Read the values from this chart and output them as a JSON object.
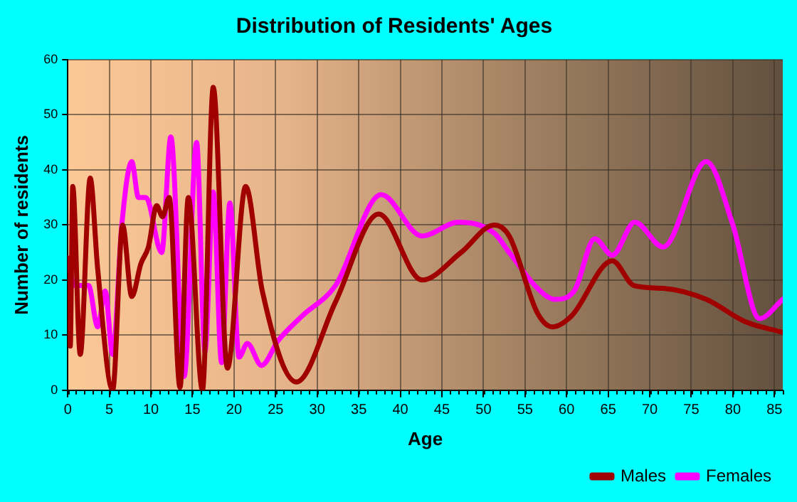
{
  "chart_data": {
    "type": "line",
    "title": "Distribution of Residents' Ages",
    "xlabel": "Age",
    "ylabel": "Number of residents",
    "xlim": [
      0,
      86
    ],
    "xticks": [
      0,
      5,
      10,
      15,
      20,
      25,
      30,
      35,
      40,
      45,
      50,
      55,
      60,
      65,
      70,
      75,
      80,
      85
    ],
    "ylim": [
      0,
      60
    ],
    "yticks": [
      0,
      10,
      20,
      30,
      40,
      50,
      60
    ],
    "grid": true,
    "legend": "bottom right",
    "marker": "none",
    "line_style": "solid",
    "series": [
      {
        "name": "Males",
        "color": "#a00000",
        "x": [
          0,
          0.3,
          0.6,
          1.5,
          2.7,
          3.6,
          5.4,
          6.6,
          7.7,
          8.8,
          9.7,
          10.7,
          11.4,
          12.2,
          13.5,
          14.5,
          16.2,
          17.5,
          19.2,
          21.4,
          23.4,
          27.5,
          32.2,
          37.4,
          42.6,
          47.3,
          51.3,
          53.1,
          56.5,
          58.3,
          60.6,
          65.5,
          68.1,
          71.6,
          76.8,
          81.4,
          86
        ],
        "values": [
          24,
          8,
          37,
          6.5,
          38.5,
          22,
          0,
          30,
          17,
          23,
          26,
          33.5,
          31.5,
          35,
          0.5,
          35,
          0,
          55,
          4,
          37,
          18,
          1.5,
          16,
          32,
          20,
          25,
          30,
          28,
          14,
          11.5,
          13.5,
          23.5,
          19,
          18.5,
          16.5,
          12.5,
          10.5
        ]
      },
      {
        "name": "Females",
        "color": "#ff00ff",
        "x": [
          0,
          0.8,
          2.5,
          3.6,
          4.5,
          5.4,
          6.5,
          7.7,
          8.5,
          9.4,
          11.3,
          12.4,
          14,
          15.5,
          16.5,
          17.5,
          18.5,
          19.5,
          20.6,
          21.6,
          23.3,
          25.3,
          28.2,
          32.2,
          37.7,
          42.6,
          47,
          51.3,
          53.1,
          56.5,
          58.6,
          60.9,
          63.4,
          65.5,
          68.2,
          71.6,
          76.8,
          80,
          83.2,
          86
        ],
        "values": [
          24,
          19,
          19,
          11.5,
          18,
          6.5,
          30,
          41.5,
          35,
          35,
          25,
          46,
          2.5,
          45,
          7,
          36,
          5,
          34,
          6,
          8.5,
          4.5,
          9,
          13.5,
          19,
          35.5,
          28,
          30.5,
          28.5,
          25,
          18.5,
          16.5,
          18,
          27.5,
          24.5,
          30.5,
          26,
          41.5,
          30,
          13,
          16.5
        ]
      }
    ]
  }
}
